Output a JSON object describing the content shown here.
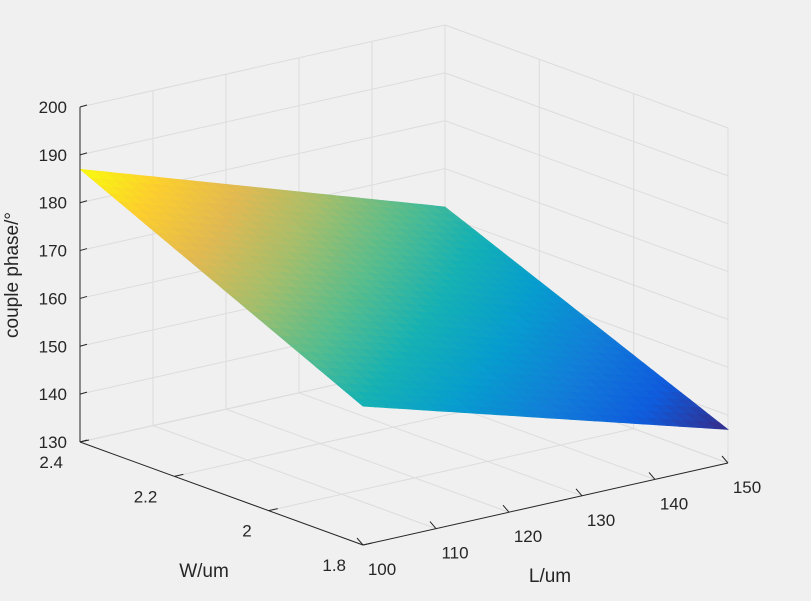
{
  "chart_data": {
    "type": "surface",
    "title": "",
    "xlabel": "L/um",
    "ylabel": "W/um",
    "zlabel": "couple phase/°",
    "xlim": [
      100,
      150
    ],
    "ylim": [
      1.8,
      2.4
    ],
    "zlim": [
      130,
      200
    ],
    "x_ticks": [
      "100",
      "110",
      "120",
      "130",
      "140",
      "150"
    ],
    "y_ticks": [
      "1.8",
      "2",
      "2.2",
      "2.4"
    ],
    "z_ticks": [
      "130",
      "140",
      "150",
      "160",
      "170",
      "180",
      "190",
      "200"
    ],
    "grid": true,
    "colormap": "parula",
    "corner_values": [
      {
        "L": 100,
        "W": 1.8,
        "phase": 159
      },
      {
        "L": 100,
        "W": 2.4,
        "phase": 187
      },
      {
        "L": 150,
        "W": 1.8,
        "phase": 137
      },
      {
        "L": 150,
        "W": 2.4,
        "phase": 162
      }
    ],
    "colors": {
      "background": "#f0f0f0",
      "axes_line": "#262626",
      "grid": "#dcdcdc",
      "surface_high": "#f9fb0e",
      "surface_low": "#352a87"
    }
  }
}
